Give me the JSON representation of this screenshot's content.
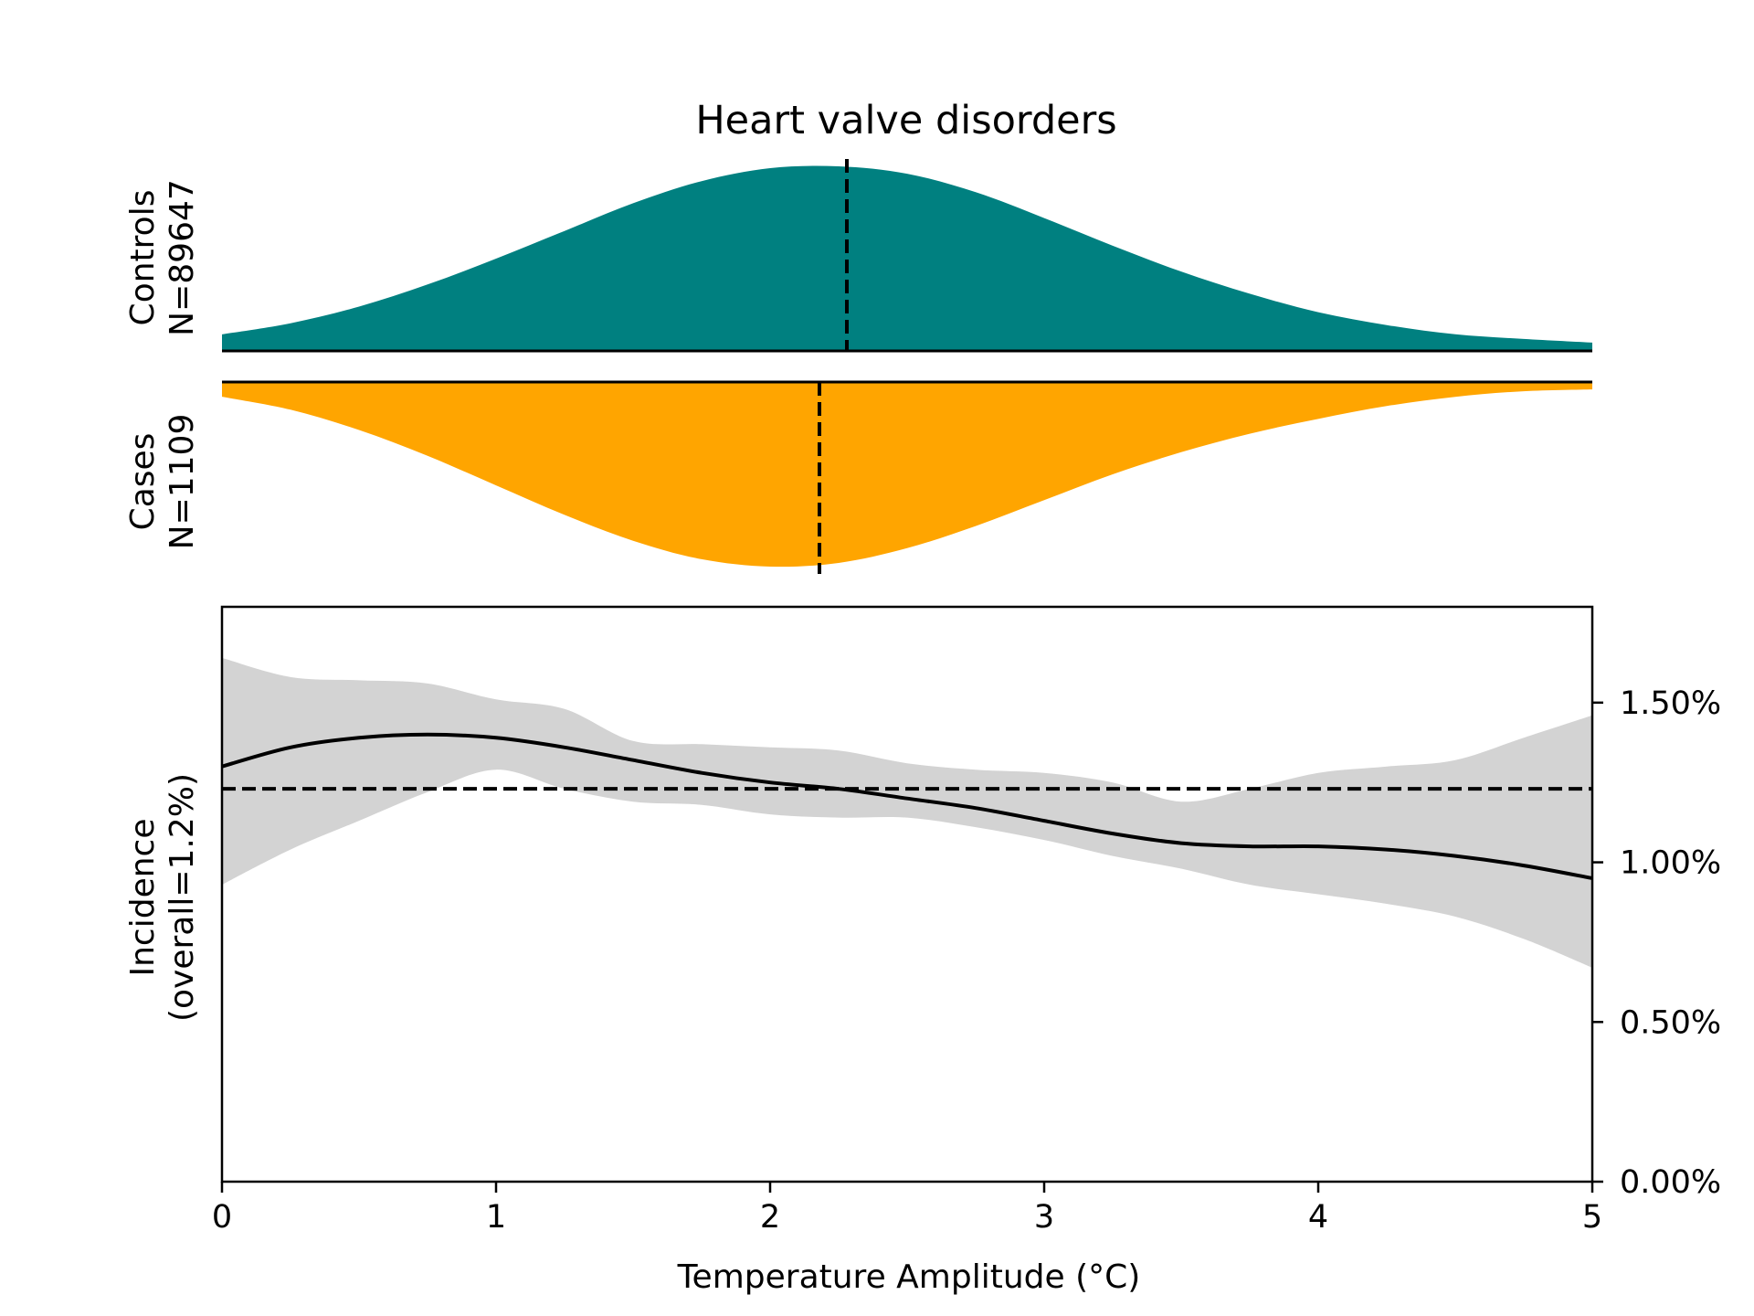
{
  "chart_data": {
    "title": "Heart valve disorders",
    "xlabel": "Temperature Amplitude (°C)",
    "xlim": [
      0,
      5
    ],
    "xticks": [
      0,
      1,
      2,
      3,
      4,
      5
    ],
    "x_tick_labels": [
      "0",
      "1",
      "2",
      "3",
      "4",
      "5"
    ],
    "colors": {
      "controls": "#008080",
      "cases": "#FFA500",
      "band": "#D3D3D3",
      "line": "#000000"
    },
    "controls": {
      "type": "area",
      "label_line1": "Controls",
      "label_line2": "N=89647",
      "median": 2.28,
      "x": [
        0,
        0.25,
        0.5,
        0.75,
        1,
        1.25,
        1.5,
        1.75,
        2,
        2.25,
        2.5,
        2.75,
        3,
        3.25,
        3.5,
        3.75,
        4,
        4.25,
        4.5,
        4.75,
        5
      ],
      "density": [
        0.09,
        0.15,
        0.24,
        0.36,
        0.5,
        0.65,
        0.8,
        0.92,
        0.99,
        1.0,
        0.96,
        0.86,
        0.72,
        0.57,
        0.43,
        0.31,
        0.21,
        0.14,
        0.09,
        0.065,
        0.045
      ]
    },
    "cases": {
      "type": "area",
      "label_line1": "Cases",
      "label_line2": "N=1109",
      "median": 2.18,
      "x": [
        0,
        0.25,
        0.5,
        0.75,
        1,
        1.25,
        1.5,
        1.75,
        2,
        2.25,
        2.5,
        2.75,
        3,
        3.25,
        3.5,
        3.75,
        4,
        4.25,
        4.5,
        4.75,
        5
      ],
      "density": [
        0.08,
        0.15,
        0.26,
        0.4,
        0.56,
        0.72,
        0.86,
        0.96,
        1.0,
        0.98,
        0.9,
        0.78,
        0.64,
        0.5,
        0.38,
        0.28,
        0.2,
        0.13,
        0.08,
        0.05,
        0.04
      ]
    },
    "incidence": {
      "type": "line",
      "ylabel_line1": "Incidence",
      "ylabel_line2": "(overall=1.2%)",
      "ylim": [
        0,
        1.8
      ],
      "yticks": [
        0,
        0.5,
        1.0,
        1.5
      ],
      "y_tick_labels": [
        "0.00%",
        "0.50%",
        "1.00%",
        "1.50%"
      ],
      "overall": 1.23,
      "x": [
        0,
        0.25,
        0.5,
        0.75,
        1,
        1.25,
        1.5,
        1.75,
        2,
        2.25,
        2.5,
        2.75,
        3,
        3.25,
        3.5,
        3.75,
        4,
        4.25,
        4.5,
        4.75,
        5
      ],
      "y": [
        1.3,
        1.36,
        1.39,
        1.4,
        1.39,
        1.36,
        1.32,
        1.28,
        1.25,
        1.23,
        1.2,
        1.17,
        1.13,
        1.09,
        1.06,
        1.05,
        1.05,
        1.04,
        1.02,
        0.99,
        0.95
      ],
      "lower": [
        0.93,
        1.04,
        1.13,
        1.22,
        1.29,
        1.23,
        1.19,
        1.18,
        1.15,
        1.14,
        1.14,
        1.11,
        1.07,
        1.02,
        0.98,
        0.93,
        0.9,
        0.87,
        0.83,
        0.76,
        0.67
      ],
      "upper": [
        1.64,
        1.58,
        1.57,
        1.56,
        1.51,
        1.48,
        1.38,
        1.37,
        1.36,
        1.35,
        1.31,
        1.29,
        1.28,
        1.25,
        1.19,
        1.23,
        1.28,
        1.3,
        1.32,
        1.39,
        1.46
      ]
    }
  }
}
